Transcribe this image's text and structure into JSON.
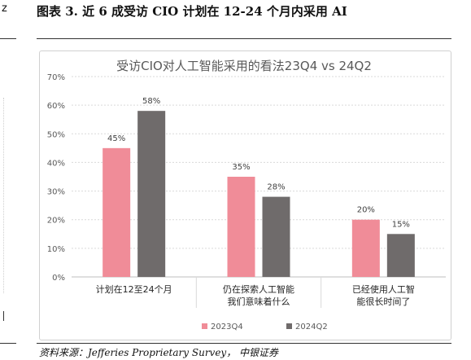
{
  "figure": {
    "title": "图表 3. 近 6 成受访 CIO 计划在 12-24 个月内采用 AI",
    "source": "资料来源：Jefferies Proprietary Survey， 中银证券",
    "left_mark": "z"
  },
  "chart_data": {
    "type": "bar",
    "title": "受访CIO对人工智能采用的看法23Q4 vs 24Q2",
    "categories": [
      [
        "计划在12至24个月"
      ],
      [
        "仍在探索人工智能",
        "我们意味着什么"
      ],
      [
        "已经使用人工智",
        "能很长时间了"
      ]
    ],
    "series": [
      {
        "name": "2023Q4",
        "values": [
          45,
          35,
          20
        ],
        "labels": [
          "45%",
          "35%",
          "20%"
        ],
        "color": "#f08c98"
      },
      {
        "name": "2024Q2",
        "values": [
          58,
          28,
          15
        ],
        "labels": [
          "58%",
          "28%",
          "15%"
        ],
        "color": "#6f6b6b"
      }
    ],
    "yticks": [
      "0%",
      "10%",
      "20%",
      "30%",
      "40%",
      "50%",
      "60%",
      "70%"
    ],
    "ylim": [
      0,
      70
    ],
    "grid": true,
    "legend_position": "bottom"
  }
}
